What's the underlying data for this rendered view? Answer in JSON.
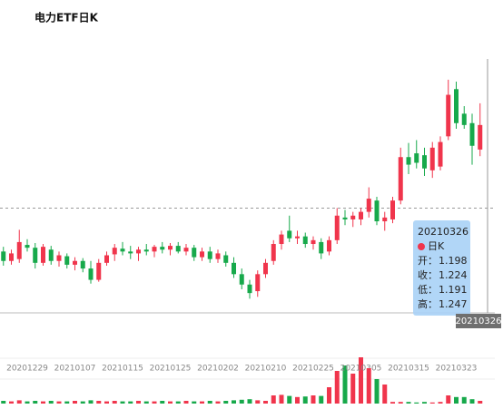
{
  "chart_data": {
    "type": "candlestick",
    "title": "电力ETF日K",
    "series_name": "日K",
    "categories": [
      null,
      null,
      null,
      "20201229",
      null,
      null,
      null,
      null,
      null,
      "20210107",
      null,
      null,
      null,
      null,
      null,
      "20210115",
      null,
      null,
      null,
      null,
      null,
      "20210125",
      null,
      null,
      null,
      null,
      null,
      "20210202",
      null,
      null,
      null,
      null,
      null,
      "20210210",
      null,
      null,
      null,
      null,
      null,
      "20210225",
      null,
      null,
      null,
      null,
      null,
      "20210305",
      null,
      null,
      null,
      null,
      null,
      "20210315",
      null,
      null,
      null,
      null,
      null,
      "20210323",
      null,
      null,
      "20210326"
    ],
    "open": [
      1.09,
      1.08,
      1.082,
      1.097,
      1.094,
      1.078,
      1.092,
      1.08,
      1.085,
      1.076,
      1.08,
      1.072,
      1.06,
      1.078,
      1.087,
      1.093,
      1.09,
      1.088,
      1.092,
      1.09,
      1.095,
      1.092,
      1.096,
      1.09,
      1.094,
      1.084,
      1.09,
      1.082,
      1.086,
      1.078,
      1.066,
      1.055,
      1.048,
      1.066,
      1.08,
      1.098,
      1.112,
      1.104,
      1.106,
      1.098,
      1.1,
      1.09,
      1.102,
      1.126,
      1.124,
      1.124,
      1.132,
      1.144,
      1.122,
      1.124,
      1.144,
      1.19,
      1.194,
      1.192,
      1.176,
      1.18,
      1.212,
      1.262,
      1.236,
      1.226,
      1.198
    ],
    "high": [
      1.095,
      1.092,
      1.113,
      1.103,
      1.099,
      1.098,
      1.096,
      1.09,
      1.088,
      1.084,
      1.083,
      1.08,
      1.082,
      1.09,
      1.098,
      1.1,
      1.096,
      1.095,
      1.098,
      1.097,
      1.1,
      1.099,
      1.1,
      1.098,
      1.097,
      1.094,
      1.095,
      1.092,
      1.09,
      1.084,
      1.072,
      1.06,
      1.07,
      1.082,
      1.102,
      1.112,
      1.128,
      1.112,
      1.11,
      1.106,
      1.104,
      1.106,
      1.136,
      1.134,
      1.132,
      1.136,
      1.158,
      1.148,
      1.132,
      1.148,
      1.2,
      1.205,
      1.208,
      1.2,
      1.206,
      1.212,
      1.272,
      1.27,
      1.244,
      1.236,
      1.247
    ],
    "low": [
      1.075,
      1.076,
      1.078,
      1.09,
      1.072,
      1.075,
      1.076,
      1.074,
      1.072,
      1.07,
      1.068,
      1.056,
      1.058,
      1.075,
      1.08,
      1.086,
      1.082,
      1.08,
      1.086,
      1.084,
      1.088,
      1.086,
      1.088,
      1.086,
      1.08,
      1.08,
      1.078,
      1.078,
      1.074,
      1.062,
      1.05,
      1.04,
      1.042,
      1.062,
      1.076,
      1.092,
      1.1,
      1.098,
      1.094,
      1.092,
      1.082,
      1.086,
      1.098,
      1.118,
      1.116,
      1.118,
      1.126,
      1.118,
      1.112,
      1.12,
      1.14,
      1.172,
      1.178,
      1.17,
      1.168,
      1.176,
      1.208,
      1.22,
      1.22,
      1.182,
      1.191
    ],
    "close": [
      1.08,
      1.088,
      1.1,
      1.094,
      1.078,
      1.095,
      1.08,
      1.086,
      1.076,
      1.08,
      1.072,
      1.06,
      1.078,
      1.086,
      1.094,
      1.09,
      1.088,
      1.092,
      1.09,
      1.095,
      1.092,
      1.096,
      1.09,
      1.094,
      1.084,
      1.09,
      1.082,
      1.088,
      1.078,
      1.066,
      1.055,
      1.046,
      1.066,
      1.078,
      1.098,
      1.108,
      1.104,
      1.106,
      1.098,
      1.102,
      1.088,
      1.102,
      1.128,
      1.124,
      1.128,
      1.132,
      1.146,
      1.122,
      1.126,
      1.144,
      1.19,
      1.182,
      1.184,
      1.178,
      1.2,
      1.206,
      1.256,
      1.226,
      1.224,
      1.202,
      1.224
    ],
    "volume": [
      5,
      4,
      6,
      4,
      5,
      4,
      5,
      4,
      4,
      5,
      4,
      6,
      5,
      4,
      5,
      4,
      4,
      5,
      4,
      4,
      5,
      4,
      4,
      5,
      4,
      4,
      5,
      4,
      5,
      6,
      7,
      8,
      6,
      5,
      15,
      16,
      14,
      12,
      13,
      15,
      14,
      30,
      60,
      70,
      55,
      85,
      65,
      45,
      35,
      3,
      3,
      3,
      2,
      3,
      2,
      3,
      15,
      12,
      12,
      8,
      5
    ],
    "ylim": [
      1.025,
      1.318
    ],
    "vlim": [
      0,
      100
    ],
    "ref_line": 1.136,
    "up_color": "#f0354c",
    "down_color": "#17a94b",
    "tooltip": {
      "labels": [
        "开：",
        "收：",
        "低：",
        "高："
      ]
    }
  }
}
